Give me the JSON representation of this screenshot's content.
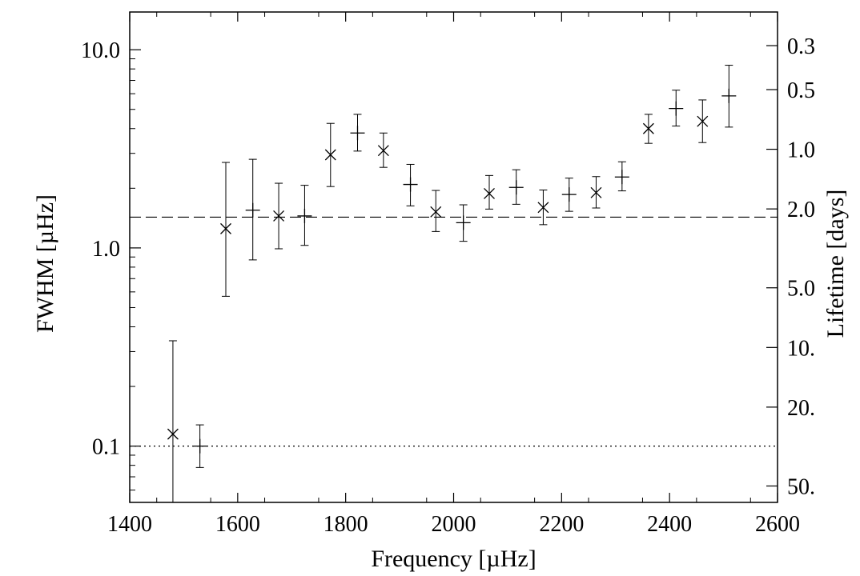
{
  "chart_data": {
    "type": "scatter",
    "xlabel": "Frequency [µHz]",
    "ylabel": "FWHM [µHz]",
    "y2label": "Lifetime [days]",
    "xlim": [
      1400,
      2600
    ],
    "ylim": [
      0.052,
      15.5
    ],
    "yscale": "log",
    "x_ticks": [
      1400,
      1600,
      1800,
      2000,
      2200,
      2400,
      2600
    ],
    "y_ticks": [
      {
        "value": 0.1,
        "label": "0.1"
      },
      {
        "value": 1.0,
        "label": "1.0"
      },
      {
        "value": 10.0,
        "label": "10.0"
      }
    ],
    "y2_ticks": [
      {
        "value": 0.3,
        "label": "0.3"
      },
      {
        "value": 0.5,
        "label": "0.5"
      },
      {
        "value": 1.0,
        "label": "1.0"
      },
      {
        "value": 2.0,
        "label": "2.0"
      },
      {
        "value": 5.0,
        "label": "5.0"
      },
      {
        "value": 10.0,
        "label": "10."
      },
      {
        "value": 20.0,
        "label": "20."
      },
      {
        "value": 50.0,
        "label": "50."
      }
    ],
    "reference_lines": [
      {
        "style": "dashed",
        "y": 1.43
      },
      {
        "style": "dotted",
        "y": 0.1
      }
    ],
    "series": [
      {
        "marker": "x",
        "points": [
          {
            "x": 1480,
            "y": 0.115,
            "lo": 0.03,
            "hi": 0.34
          },
          {
            "x": 1578,
            "y": 1.25,
            "lo": 0.57,
            "hi": 2.7
          },
          {
            "x": 1676,
            "y": 1.45,
            "lo": 0.99,
            "hi": 2.12
          },
          {
            "x": 1772,
            "y": 2.95,
            "lo": 2.04,
            "hi": 4.25
          },
          {
            "x": 1870,
            "y": 3.1,
            "lo": 2.55,
            "hi": 3.8
          },
          {
            "x": 1967,
            "y": 1.52,
            "lo": 1.21,
            "hi": 1.95
          },
          {
            "x": 2066,
            "y": 1.88,
            "lo": 1.57,
            "hi": 2.32
          },
          {
            "x": 2166,
            "y": 1.6,
            "lo": 1.31,
            "hi": 1.96
          },
          {
            "x": 2264,
            "y": 1.9,
            "lo": 1.59,
            "hi": 2.29
          },
          {
            "x": 2361,
            "y": 4.0,
            "lo": 3.37,
            "hi": 4.72
          },
          {
            "x": 2461,
            "y": 4.35,
            "lo": 3.4,
            "hi": 5.58
          }
        ]
      },
      {
        "marker": "plus",
        "points": [
          {
            "x": 1530,
            "y": 0.1,
            "lo": 0.078,
            "hi": 0.128
          },
          {
            "x": 1628,
            "y": 1.55,
            "lo": 0.87,
            "hi": 2.8
          },
          {
            "x": 1724,
            "y": 1.45,
            "lo": 1.03,
            "hi": 2.07
          },
          {
            "x": 1822,
            "y": 3.8,
            "lo": 3.08,
            "hi": 4.72
          },
          {
            "x": 1920,
            "y": 2.09,
            "lo": 1.63,
            "hi": 2.64
          },
          {
            "x": 2018,
            "y": 1.34,
            "lo": 1.08,
            "hi": 1.65
          },
          {
            "x": 2116,
            "y": 2.02,
            "lo": 1.66,
            "hi": 2.48
          },
          {
            "x": 2214,
            "y": 1.86,
            "lo": 1.53,
            "hi": 2.25
          },
          {
            "x": 2312,
            "y": 2.28,
            "lo": 1.94,
            "hi": 2.72
          },
          {
            "x": 2412,
            "y": 5.05,
            "lo": 4.12,
            "hi": 6.25
          },
          {
            "x": 2510,
            "y": 5.85,
            "lo": 4.07,
            "hi": 8.35
          }
        ]
      }
    ]
  }
}
